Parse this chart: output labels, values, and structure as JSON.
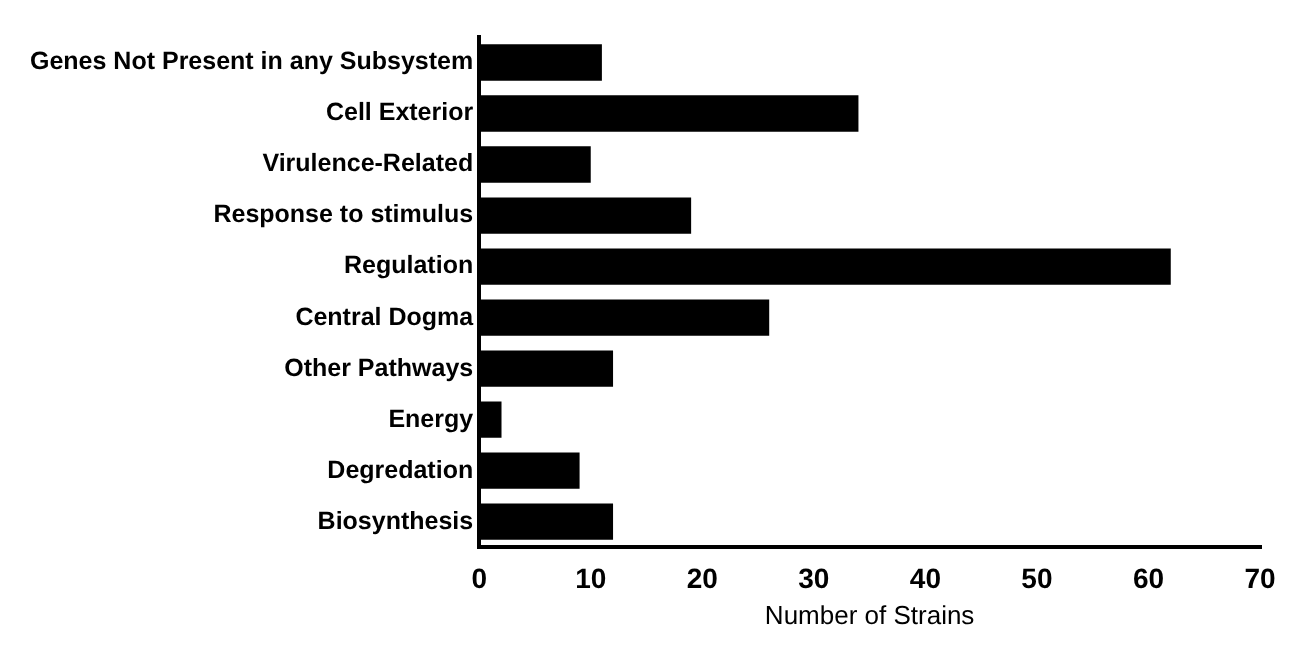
{
  "chart_data": {
    "type": "bar",
    "orientation": "horizontal",
    "xlabel": "Number of Strains",
    "categories": [
      "Genes Not Present in any Subsystem",
      "Cell Exterior",
      "Virulence-Related",
      "Response to stimulus",
      "Regulation",
      "Central Dogma",
      "Other Pathways",
      "Energy",
      "Degredation",
      "Biosynthesis"
    ],
    "values": [
      11,
      34,
      10,
      19,
      62,
      26,
      12,
      2,
      9,
      12
    ],
    "color": "#000000",
    "xlim": [
      0,
      70
    ],
    "xticks": [
      0,
      10,
      20,
      30,
      40,
      50,
      60,
      70
    ],
    "grid": false,
    "legend": false
  }
}
